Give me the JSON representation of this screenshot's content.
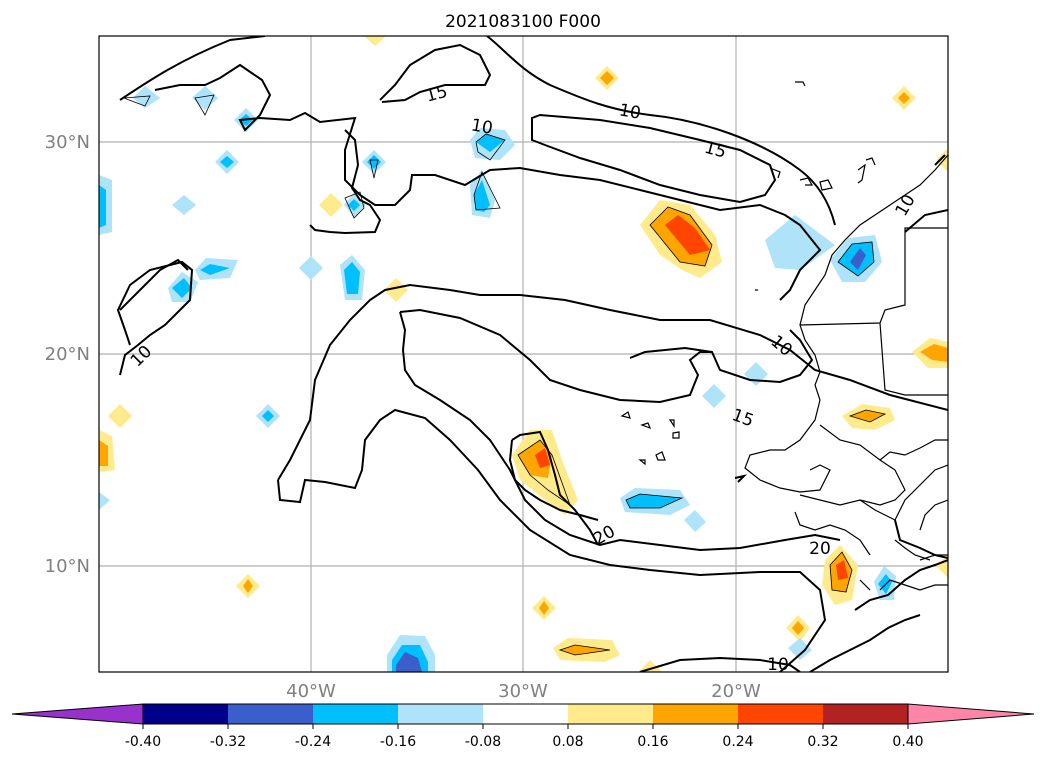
{
  "title": "2021083100 F000",
  "lat_labels": [
    "30°N",
    "20°N",
    "10°N"
  ],
  "lon_labels": [
    "40°W",
    "30°W",
    "20°W"
  ],
  "colorbar": {
    "tick_labels": [
      "-0.40",
      "-0.32",
      "-0.24",
      "-0.16",
      "-0.08",
      "0.08",
      "0.16",
      "0.24",
      "0.32",
      "0.40"
    ],
    "colors": [
      "#9932cc",
      "#00008b",
      "#3a5fcd",
      "#00bfff",
      "#aee3fa",
      "#ffffff",
      "#ffeb8c",
      "#ffa500",
      "#ff4500",
      "#b22222",
      "#ff85a8"
    ]
  },
  "contour_labels": [
    "15",
    "10",
    "10",
    "15",
    "10",
    "10",
    "15",
    "20",
    "20",
    "10",
    "10"
  ]
}
